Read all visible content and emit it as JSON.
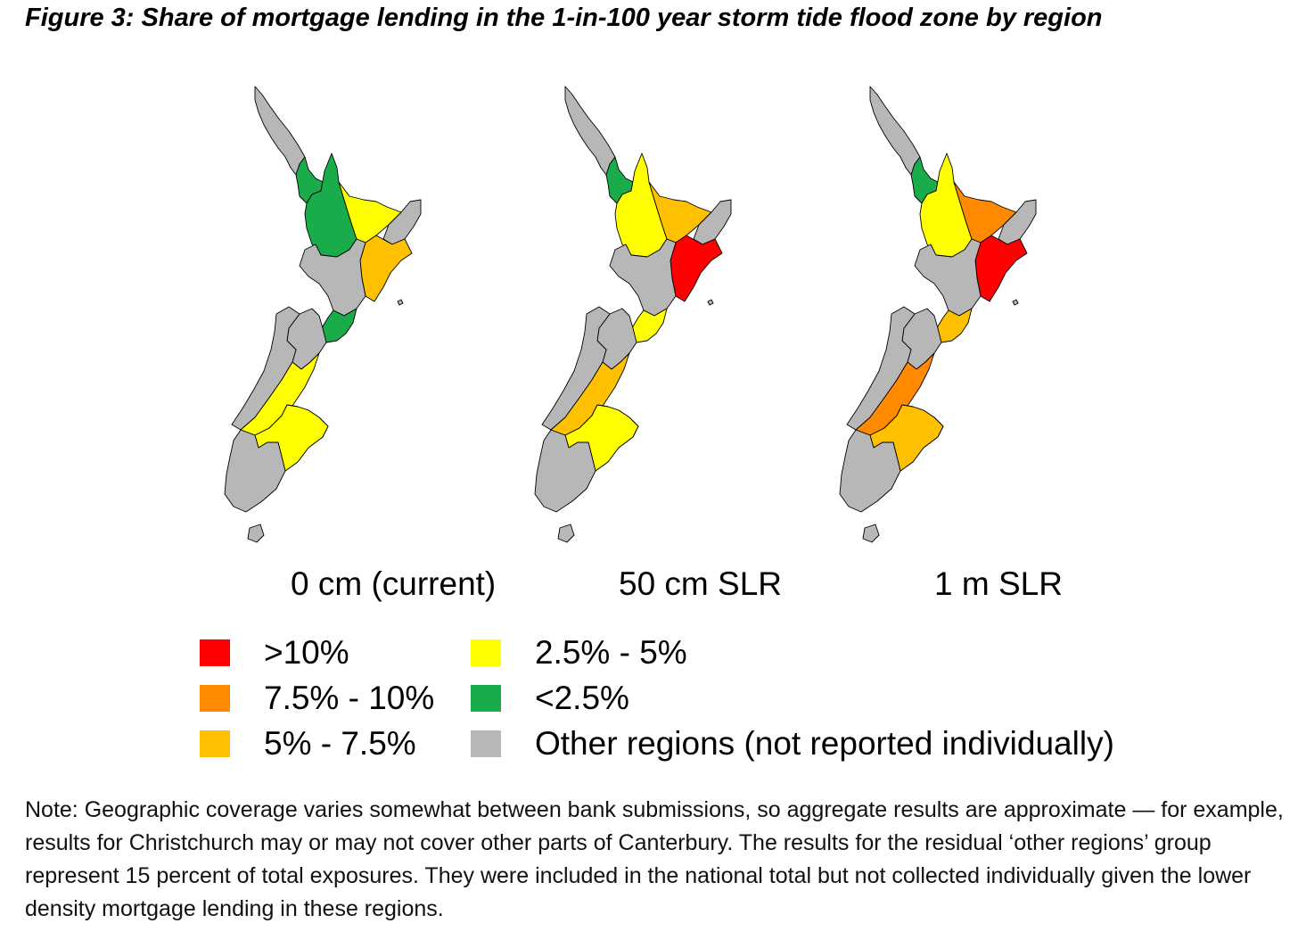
{
  "title": "Figure 3: Share of mortgage lending in the 1-in-100 year storm tide flood zone by region",
  "colors": {
    "gt10": "#ff0000",
    "r7_10": "#ff8a00",
    "r5_7": "#ffc000",
    "r2_5": "#ffff00",
    "lt2_5": "#1aab4b",
    "other": "#b7b7b7"
  },
  "legend": [
    {
      "key": "gt10",
      "label": ">10%"
    },
    {
      "key": "r7_10",
      "label": "7.5% - 10%"
    },
    {
      "key": "r5_7",
      "label": "5% - 7.5%"
    },
    {
      "key": "r2_5",
      "label": "2.5% - 5%"
    },
    {
      "key": "lt2_5",
      "label": "<2.5%"
    },
    {
      "key": "other",
      "label": "Other regions (not reported individually)"
    }
  ],
  "scenarios": [
    {
      "label": "0 cm (current)",
      "regions": {
        "northland": "other",
        "auckland": "lt2_5",
        "waikato": "lt2_5",
        "bay_of_plenty": "r2_5",
        "gisborne": "other",
        "hawkes_bay": "r5_7",
        "central_north": "other",
        "wellington": "lt2_5",
        "nelson_marlborough": "other",
        "west_coast": "other",
        "canterbury": "r2_5",
        "otago": "r2_5",
        "southland": "other"
      }
    },
    {
      "label": "50 cm SLR",
      "regions": {
        "northland": "other",
        "auckland": "lt2_5",
        "waikato": "r2_5",
        "bay_of_plenty": "r5_7",
        "gisborne": "other",
        "hawkes_bay": "gt10",
        "central_north": "other",
        "wellington": "r2_5",
        "nelson_marlborough": "other",
        "west_coast": "other",
        "canterbury": "r5_7",
        "otago": "r2_5",
        "southland": "other"
      }
    },
    {
      "label": "1 m SLR",
      "regions": {
        "northland": "other",
        "auckland": "lt2_5",
        "waikato": "r2_5",
        "bay_of_plenty": "r7_10",
        "gisborne": "other",
        "hawkes_bay": "gt10",
        "central_north": "other",
        "wellington": "r5_7",
        "nelson_marlborough": "other",
        "west_coast": "other",
        "canterbury": "r7_10",
        "otago": "r5_7",
        "southland": "other"
      }
    }
  ],
  "note": "Note: Geographic coverage varies somewhat between bank submissions, so aggregate results are approximate — for example, results for Christchurch may or may not cover other parts of Canterbury. The results for the residual ‘other regions’ group represent 15 percent of total exposures. They were included in the national total but not collected individually given the lower density mortgage lending in these regions."
}
